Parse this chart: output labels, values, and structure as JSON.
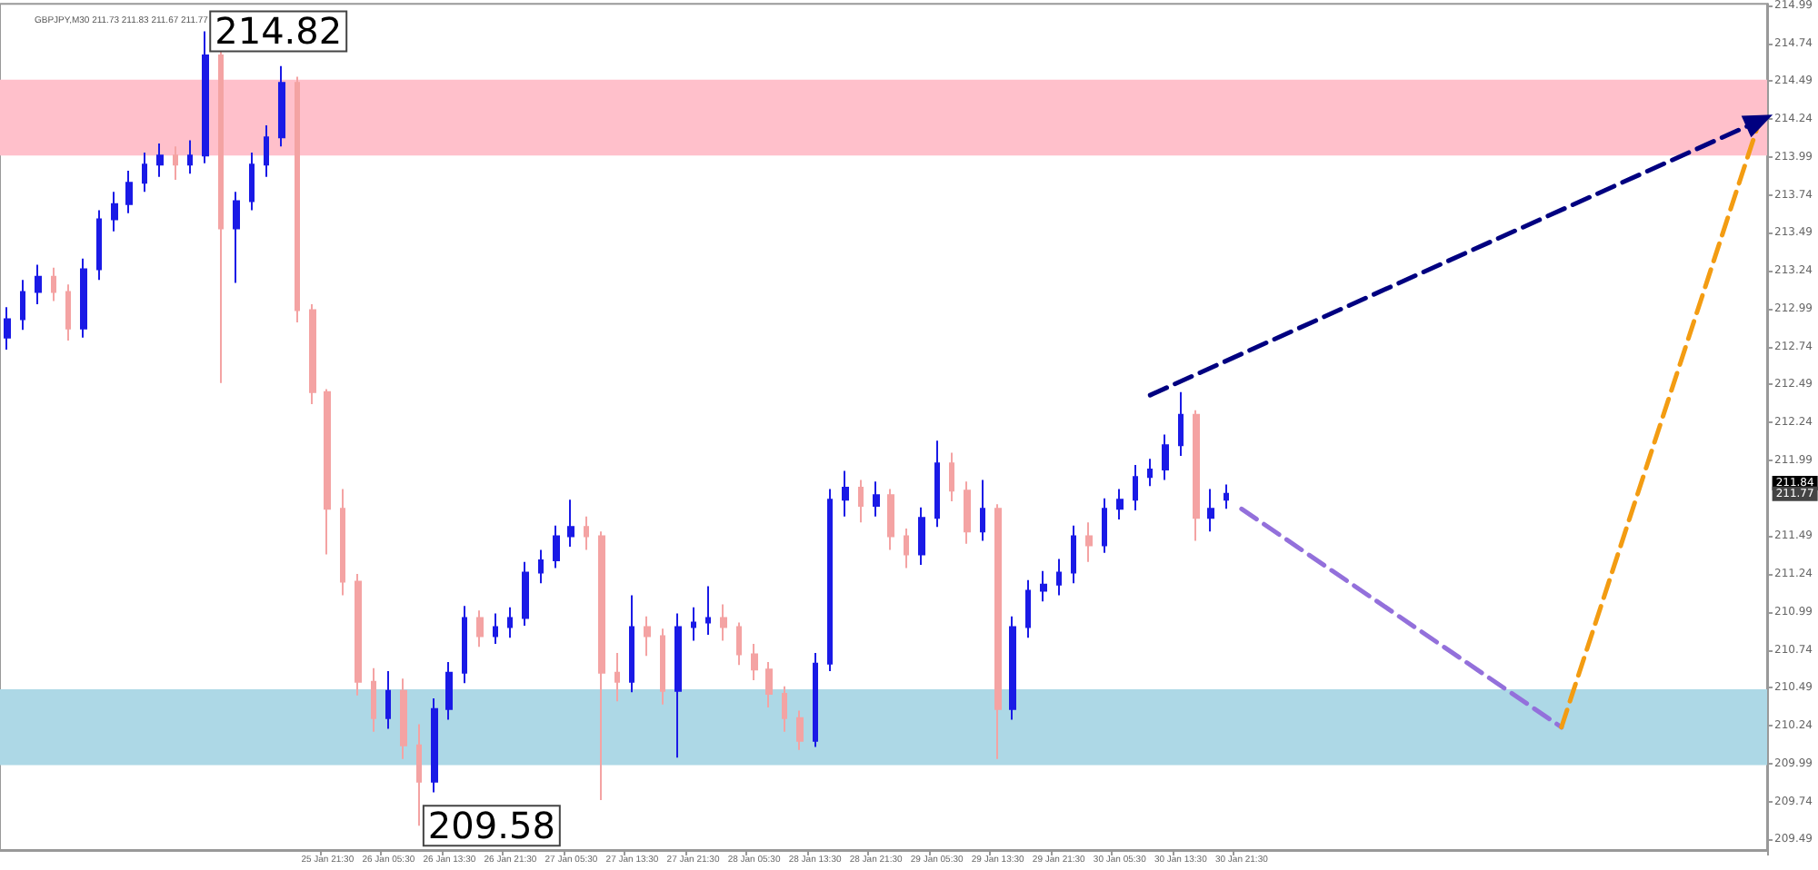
{
  "chart_data": {
    "type": "candlestick",
    "title": "GBPJPY,M30 211.73 211.83 211.67 211.77",
    "categories": [
      null,
      null,
      null,
      null,
      null,
      null,
      null,
      null,
      null,
      null,
      null,
      null,
      null,
      null,
      null,
      null,
      null,
      null,
      null,
      null,
      null,
      "25 Jan 21:30",
      null,
      null,
      null,
      "26 Jan 05:30",
      null,
      null,
      null,
      "26 Jan 13:30",
      null,
      null,
      null,
      "26 Jan 21:30",
      null,
      null,
      null,
      "27 Jan 05:30",
      null,
      null,
      null,
      "27 Jan 13:30",
      null,
      null,
      null,
      "27 Jan 21:30",
      null,
      null,
      null,
      "28 Jan 05:30",
      null,
      null,
      null,
      "28 Jan 13:30",
      null,
      null,
      null,
      "28 Jan 21:30",
      null,
      null,
      null,
      "29 Jan 05:30",
      null,
      null,
      null,
      "29 Jan 13:30",
      null,
      null,
      null,
      "29 Jan 21:30",
      null,
      null,
      null,
      "30 Jan 05:30",
      null,
      null,
      null,
      "30 Jan 13:30",
      null,
      null,
      null,
      "30 Jan 21:30",
      null,
      null,
      null,
      null,
      null,
      null,
      null,
      null,
      null,
      null,
      null,
      null,
      null,
      null,
      null,
      null,
      null,
      null,
      null,
      null,
      null,
      null,
      null,
      null,
      null,
      null,
      null,
      null,
      null,
      null,
      null,
      null,
      null,
      null
    ],
    "ohlc": [
      [
        212.8,
        213.0,
        212.72,
        212.92
      ],
      [
        212.92,
        213.18,
        212.85,
        213.1
      ],
      [
        213.1,
        213.28,
        213.02,
        213.2
      ],
      [
        213.2,
        213.26,
        213.04,
        213.1
      ],
      [
        213.1,
        213.15,
        212.78,
        212.86
      ],
      [
        212.86,
        213.32,
        212.8,
        213.25
      ],
      [
        213.25,
        213.64,
        213.18,
        213.58
      ],
      [
        213.58,
        213.76,
        213.5,
        213.68
      ],
      [
        213.68,
        213.9,
        213.62,
        213.82
      ],
      [
        213.82,
        214.02,
        213.76,
        213.94
      ],
      [
        213.94,
        214.08,
        213.86,
        214.0
      ],
      [
        214.0,
        214.06,
        213.84,
        213.94
      ],
      [
        213.94,
        214.1,
        213.88,
        214.0
      ],
      [
        214.0,
        214.82,
        213.95,
        214.66
      ],
      [
        214.66,
        214.7,
        212.5,
        213.52
      ],
      [
        213.52,
        213.76,
        213.16,
        213.7
      ],
      [
        213.7,
        214.02,
        213.64,
        213.94
      ],
      [
        213.94,
        214.2,
        213.86,
        214.12
      ],
      [
        214.12,
        214.59,
        214.06,
        214.48
      ],
      [
        214.48,
        214.52,
        212.9,
        212.98
      ],
      [
        212.98,
        213.02,
        212.36,
        212.44
      ],
      [
        212.44,
        212.46,
        211.37,
        211.67
      ],
      [
        211.67,
        211.8,
        211.1,
        211.19
      ],
      [
        211.19,
        211.24,
        210.44,
        210.53
      ],
      [
        210.53,
        210.62,
        210.2,
        210.29
      ],
      [
        210.29,
        210.6,
        210.22,
        210.47
      ],
      [
        210.47,
        210.55,
        210.02,
        210.11
      ],
      [
        210.11,
        210.25,
        209.58,
        209.87
      ],
      [
        209.87,
        210.42,
        209.8,
        210.35
      ],
      [
        210.35,
        210.66,
        210.28,
        210.59
      ],
      [
        210.59,
        211.03,
        210.52,
        210.95
      ],
      [
        210.95,
        211.0,
        210.76,
        210.83
      ],
      [
        210.83,
        210.98,
        210.78,
        210.89
      ],
      [
        210.89,
        211.02,
        210.82,
        210.95
      ],
      [
        210.95,
        211.32,
        210.9,
        211.25
      ],
      [
        211.25,
        211.4,
        211.18,
        211.33
      ],
      [
        211.33,
        211.56,
        211.28,
        211.49
      ],
      [
        211.49,
        211.73,
        211.42,
        211.55
      ],
      [
        211.55,
        211.62,
        211.4,
        211.49
      ],
      [
        211.49,
        211.52,
        209.75,
        210.59
      ],
      [
        210.59,
        210.72,
        210.4,
        210.53
      ],
      [
        210.53,
        211.1,
        210.46,
        210.89
      ],
      [
        210.89,
        210.96,
        210.7,
        210.83
      ],
      [
        210.83,
        210.88,
        210.38,
        210.47
      ],
      [
        210.47,
        210.98,
        210.03,
        210.89
      ],
      [
        210.89,
        211.02,
        210.8,
        210.92
      ],
      [
        210.92,
        211.16,
        210.84,
        210.95
      ],
      [
        210.95,
        211.04,
        210.8,
        210.89
      ],
      [
        210.89,
        210.92,
        210.64,
        210.71
      ],
      [
        210.71,
        210.78,
        210.54,
        210.61
      ],
      [
        210.61,
        210.66,
        210.36,
        210.45
      ],
      [
        210.45,
        210.5,
        210.2,
        210.29
      ],
      [
        210.29,
        210.34,
        210.08,
        210.14
      ],
      [
        210.14,
        210.72,
        210.1,
        210.65
      ],
      [
        210.65,
        211.8,
        210.6,
        211.73
      ],
      [
        211.73,
        211.92,
        211.62,
        211.81
      ],
      [
        211.81,
        211.86,
        211.58,
        211.69
      ],
      [
        211.69,
        211.85,
        211.62,
        211.76
      ],
      [
        211.76,
        211.8,
        211.4,
        211.49
      ],
      [
        211.49,
        211.54,
        211.28,
        211.37
      ],
      [
        211.37,
        211.68,
        211.3,
        211.61
      ],
      [
        211.61,
        212.12,
        211.55,
        211.97
      ],
      [
        211.97,
        212.04,
        211.72,
        211.79
      ],
      [
        211.79,
        211.85,
        211.44,
        211.52
      ],
      [
        211.52,
        211.86,
        211.46,
        211.67
      ],
      [
        211.67,
        211.7,
        210.02,
        210.35
      ],
      [
        210.35,
        210.96,
        210.28,
        210.89
      ],
      [
        210.89,
        211.2,
        210.82,
        211.13
      ],
      [
        211.13,
        211.26,
        211.06,
        211.17
      ],
      [
        211.17,
        211.34,
        211.1,
        211.25
      ],
      [
        211.25,
        211.56,
        211.18,
        211.49
      ],
      [
        211.49,
        211.58,
        211.32,
        211.43
      ],
      [
        211.43,
        211.74,
        211.38,
        211.67
      ],
      [
        211.67,
        211.8,
        211.6,
        211.73
      ],
      [
        211.73,
        211.96,
        211.66,
        211.88
      ],
      [
        211.88,
        212.0,
        211.82,
        211.93
      ],
      [
        211.93,
        212.16,
        211.86,
        212.09
      ],
      [
        212.09,
        212.44,
        212.02,
        212.29
      ],
      [
        212.29,
        212.32,
        211.46,
        211.61
      ],
      [
        211.61,
        211.8,
        211.52,
        211.67
      ],
      [
        211.73,
        211.83,
        211.67,
        211.77
      ],
      null,
      null,
      null,
      null,
      null,
      null,
      null,
      null,
      null,
      null,
      null,
      null,
      null,
      null,
      null,
      null,
      null,
      null,
      null,
      null,
      null,
      null,
      null,
      null,
      null,
      null,
      null,
      null,
      null,
      null,
      null,
      null,
      null,
      null,
      null
    ],
    "colors": [
      "#1a1ae6",
      "#1a1ae6",
      "#1a1ae6",
      "#f4a3a3",
      "#f4a3a3",
      "#1a1ae6",
      "#1a1ae6",
      "#1a1ae6",
      "#1a1ae6",
      "#1a1ae6",
      "#1a1ae6",
      "#f4a3a3",
      "#1a1ae6",
      "#1a1ae6",
      "#f4a3a3",
      "#1a1ae6",
      "#1a1ae6",
      "#1a1ae6",
      "#1a1ae6",
      "#f4a3a3",
      "#f4a3a3",
      "#f4a3a3",
      "#f4a3a3",
      "#f4a3a3",
      "#f4a3a3",
      "#1a1ae6",
      "#f4a3a3",
      "#f4a3a3",
      "#1a1ae6",
      "#1a1ae6",
      "#1a1ae6",
      "#f4a3a3",
      "#1a1ae6",
      "#1a1ae6",
      "#1a1ae6",
      "#1a1ae6",
      "#1a1ae6",
      "#1a1ae6",
      "#f4a3a3",
      "#f4a3a3",
      "#f4a3a3",
      "#1a1ae6",
      "#f4a3a3",
      "#f4a3a3",
      "#1a1ae6",
      "#1a1ae6",
      "#1a1ae6",
      "#f4a3a3",
      "#f4a3a3",
      "#f4a3a3",
      "#f4a3a3",
      "#f4a3a3",
      "#f4a3a3",
      "#1a1ae6",
      "#1a1ae6",
      "#1a1ae6",
      "#f4a3a3",
      "#1a1ae6",
      "#f4a3a3",
      "#f4a3a3",
      "#1a1ae6",
      "#1a1ae6",
      "#f4a3a3",
      "#f4a3a3",
      "#1a1ae6",
      "#f4a3a3",
      "#1a1ae6",
      "#1a1ae6",
      "#1a1ae6",
      "#1a1ae6",
      "#1a1ae6",
      "#f4a3a3",
      "#1a1ae6",
      "#1a1ae6",
      "#1a1ae6",
      "#1a1ae6",
      "#1a1ae6",
      "#1a1ae6",
      "#f4a3a3",
      "#1a1ae6",
      "#1a1ae6",
      null,
      null,
      null,
      null,
      null,
      null,
      null,
      null,
      null,
      null,
      null,
      null,
      null,
      null,
      null,
      null,
      null,
      null,
      null,
      null,
      null,
      null,
      null,
      null,
      null,
      null,
      null,
      null,
      null,
      null,
      null,
      null,
      null,
      null,
      null
    ],
    "series": [
      {
        "type": "line",
        "color": "#000080",
        "marker": "triangle",
        "values": [
          null,
          null,
          null,
          null,
          null,
          null,
          null,
          null,
          null,
          null,
          null,
          null,
          null,
          null,
          null,
          null,
          null,
          null,
          null,
          null,
          null,
          null,
          null,
          null,
          null,
          null,
          null,
          null,
          null,
          null,
          null,
          null,
          null,
          null,
          null,
          null,
          null,
          null,
          null,
          null,
          null,
          null,
          null,
          null,
          null,
          null,
          null,
          null,
          null,
          null,
          null,
          null,
          null,
          null,
          null,
          null,
          null,
          null,
          null,
          null,
          null,
          null,
          null,
          null,
          null,
          null,
          null,
          null,
          null,
          null,
          null,
          null,
          null,
          null,
          null,
          212.42,
          null,
          null,
          null,
          null,
          null,
          null,
          null,
          null,
          null,
          null,
          null,
          null,
          null,
          null,
          null,
          null,
          null,
          null,
          null,
          null,
          null,
          null,
          null,
          null,
          null,
          null,
          null,
          null,
          null,
          null,
          null,
          null,
          null,
          null,
          null,
          null,
          null,
          null,
          null,
          214.23
        ]
      },
      {
        "type": "line",
        "color": "#9370db",
        "marker": "none",
        "values": [
          null,
          null,
          null,
          null,
          null,
          null,
          null,
          null,
          null,
          null,
          null,
          null,
          null,
          null,
          null,
          null,
          null,
          null,
          null,
          null,
          null,
          null,
          null,
          null,
          null,
          null,
          null,
          null,
          null,
          null,
          null,
          null,
          null,
          null,
          null,
          null,
          null,
          null,
          null,
          null,
          null,
          null,
          null,
          null,
          null,
          null,
          null,
          null,
          null,
          null,
          null,
          null,
          null,
          null,
          null,
          null,
          null,
          null,
          null,
          null,
          null,
          null,
          null,
          null,
          null,
          null,
          null,
          null,
          null,
          null,
          null,
          null,
          null,
          null,
          null,
          null,
          null,
          null,
          null,
          null,
          null,
          211.67,
          null,
          null,
          null,
          null,
          null,
          null,
          null,
          null,
          null,
          null,
          null,
          null,
          null,
          null,
          null,
          null,
          null,
          null,
          null,
          null,
          210.23,
          null,
          null,
          null,
          null,
          null,
          null,
          null,
          null,
          null,
          null,
          null,
          null,
          null
        ]
      },
      {
        "type": "line",
        "color": "#f39c12",
        "marker": "none",
        "values": [
          null,
          null,
          null,
          null,
          null,
          null,
          null,
          null,
          null,
          null,
          null,
          null,
          null,
          null,
          null,
          null,
          null,
          null,
          null,
          null,
          null,
          null,
          null,
          null,
          null,
          null,
          null,
          null,
          null,
          null,
          null,
          null,
          null,
          null,
          null,
          null,
          null,
          null,
          null,
          null,
          null,
          null,
          null,
          null,
          null,
          null,
          null,
          null,
          null,
          null,
          null,
          null,
          null,
          null,
          null,
          null,
          null,
          null,
          null,
          null,
          null,
          null,
          null,
          null,
          null,
          null,
          null,
          null,
          null,
          null,
          null,
          null,
          null,
          null,
          null,
          null,
          null,
          null,
          null,
          null,
          null,
          null,
          null,
          null,
          null,
          null,
          null,
          null,
          null,
          null,
          null,
          null,
          null,
          null,
          null,
          null,
          null,
          null,
          null,
          null,
          null,
          null,
          210.23,
          null,
          null,
          null,
          null,
          null,
          null,
          null,
          null,
          null,
          null,
          null,
          null,
          214.23
        ]
      }
    ],
    "line_style": "dashed",
    "bands": [
      {
        "axis": "y",
        "from": 214.0,
        "to": 214.5,
        "color": "#ffc0cb"
      },
      {
        "axis": "y",
        "from": 209.98,
        "to": 210.48,
        "color": "#add8e6"
      }
    ],
    "annotations": [
      "214.82",
      "209.58",
      {
        "text": "211.84",
        "y": 211.84
      },
      {
        "text": "211.77",
        "y": 211.77
      }
    ],
    "ylim": [
      209.42,
      215.0
    ],
    "yticks": [
      209.49,
      209.74,
      209.99,
      210.24,
      210.49,
      210.74,
      210.99,
      211.24,
      211.49,
      211.99,
      212.24,
      212.49,
      212.74,
      212.99,
      213.24,
      213.49,
      213.74,
      213.99,
      214.24,
      214.49,
      214.74,
      214.99
    ]
  }
}
